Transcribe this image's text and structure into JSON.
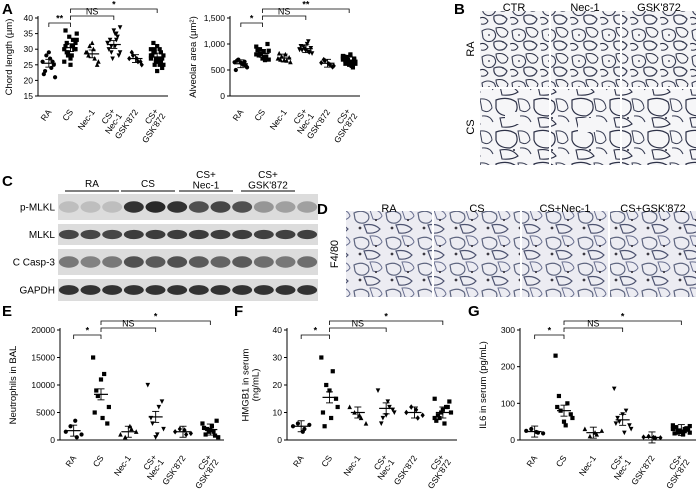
{
  "panels": {
    "A": {
      "letter": "A",
      "charts": [
        {
          "id": "chord",
          "ylabel": "Chord length (μm)",
          "ylim": [
            15,
            40
          ],
          "yticks": [
            "15",
            "20",
            "25",
            "30",
            "35",
            "40"
          ],
          "categories": [
            "RA",
            "CS",
            "Nec-1",
            "CS+\nNec-1",
            "GSK'872",
            "CS+\nGSK'872"
          ],
          "markers": [
            "circle",
            "square",
            "triangle",
            "tri-down",
            "diamond",
            "square"
          ],
          "values": [
            [
              26,
              24,
              28,
              21,
              27,
              23,
              25,
              29,
              22,
              26
            ],
            [
              30,
              33,
              28,
              35,
              31,
              29,
              32,
              27,
              36,
              30,
              34,
              26,
              31,
              29,
              33,
              28,
              32,
              30,
              25,
              31
            ],
            [
              29,
              27,
              31,
              26,
              30,
              28,
              25,
              32,
              29
            ],
            [
              32,
              35,
              29,
              37,
              31,
              33,
              28,
              36,
              30,
              34,
              27,
              32,
              33,
              31,
              29,
              35
            ],
            [
              27,
              26,
              28,
              25,
              27,
              29,
              26
            ],
            [
              28,
              26,
              30,
              25,
              27,
              29,
              24,
              31,
              28,
              26,
              27,
              30,
              25,
              29,
              28,
              26,
              32,
              27,
              23,
              28,
              29,
              26,
              27,
              30,
              25
            ]
          ],
          "means": [
            25.5,
            30.5,
            28.5,
            31.5,
            27,
            27.5
          ],
          "sig": [
            {
              "from": 0,
              "to": 1,
              "label": "**",
              "level": 0
            },
            {
              "from": 1,
              "to": 3,
              "label": "NS",
              "level": 1
            },
            {
              "from": 1,
              "to": 5,
              "label": "*",
              "level": 2
            }
          ]
        },
        {
          "id": "alveolar",
          "ylabel": "Alveolar area (μm²)",
          "ylim": [
            0,
            1500
          ],
          "yticks": [
            "0",
            "500",
            "1,000",
            "1,500"
          ],
          "categories": [
            "RA",
            "CS",
            "Nec-1",
            "CS+\nNec-1",
            "GSK'872",
            "CS+\nGSK'872"
          ],
          "markers": [
            "circle",
            "square",
            "triangle",
            "tri-down",
            "diamond",
            "square"
          ],
          "values": [
            [
              650,
              600,
              700,
              550,
              620,
              680,
              580,
              640,
              500,
              660
            ],
            [
              800,
              750,
              900,
              700,
              850,
              780,
              1000,
              720,
              880,
              760,
              820,
              950,
              690,
              810,
              870,
              740
            ],
            [
              720,
              680,
              760,
              650,
              800,
              700,
              740,
              690,
              820
            ],
            [
              900,
              850,
              950,
              820,
              1000,
              880,
              920,
              870,
              960,
              840,
              910,
              890,
              1050
            ],
            [
              640,
              600,
              680,
              580,
              620,
              700,
              560
            ],
            [
              700,
              650,
              750,
              620,
              800,
              680,
              720,
              600,
              760,
              660,
              690,
              740,
              580,
              710,
              650,
              780,
              620,
              700,
              640,
              730,
              550,
              680,
              770,
              600,
              720,
              660
            ]
          ],
          "means": [
            620,
            820,
            730,
            910,
            630,
            690
          ],
          "sig": [
            {
              "from": 0,
              "to": 1,
              "label": "*",
              "level": 0
            },
            {
              "from": 1,
              "to": 3,
              "label": "NS",
              "level": 1
            },
            {
              "from": 1,
              "to": 5,
              "label": "**",
              "level": 2
            }
          ]
        }
      ]
    },
    "B": {
      "letter": "B",
      "col_labels": [
        "CTR",
        "Nec-1",
        "GSK'872"
      ],
      "row_labels": [
        "RA",
        "CS"
      ]
    },
    "C": {
      "letter": "C",
      "group_labels": [
        "RA",
        "CS",
        "CS+\nNec-1",
        "CS+\nGSK'872"
      ],
      "rows": [
        {
          "label": "p-MLKL",
          "intensity": [
            0.15,
            0.15,
            0.15,
            0.85,
            0.9,
            0.85,
            0.7,
            0.75,
            0.7,
            0.35,
            0.3,
            0.3
          ]
        },
        {
          "label": "MLKL",
          "intensity": [
            0.75,
            0.75,
            0.75,
            0.8,
            0.8,
            0.8,
            0.8,
            0.8,
            0.8,
            0.78,
            0.78,
            0.78
          ]
        },
        {
          "label": "C Casp-3",
          "intensity": [
            0.5,
            0.45,
            0.5,
            0.7,
            0.65,
            0.7,
            0.65,
            0.6,
            0.65,
            0.55,
            0.5,
            0.55
          ]
        },
        {
          "label": "GAPDH",
          "intensity": [
            0.85,
            0.85,
            0.85,
            0.85,
            0.85,
            0.85,
            0.85,
            0.85,
            0.85,
            0.85,
            0.85,
            0.85
          ]
        }
      ]
    },
    "D": {
      "letter": "D",
      "row_label": "F4/80",
      "col_labels": [
        "RA",
        "CS",
        "CS+Nec-1",
        "CS+GSK'872"
      ]
    },
    "E": {
      "letter": "E",
      "ylabel": "Neutrophils in BAL",
      "ylim": [
        0,
        20000
      ],
      "yticks": [
        "0",
        "5000",
        "10000",
        "15000",
        "20000"
      ],
      "categories": [
        "RA",
        "CS",
        "Nec-1",
        "CS+\nNec-1",
        "GSK'872",
        "CS+\nGSK'872"
      ],
      "markers": [
        "circle",
        "square",
        "triangle",
        "tri-down",
        "diamond",
        "square"
      ],
      "values": [
        [
          1500,
          500,
          2500,
          1000,
          3500
        ],
        [
          15000,
          12000,
          8000,
          6000,
          4000,
          9000,
          3000,
          11000,
          5000
        ],
        [
          1000,
          2000,
          500,
          1500,
          2500
        ],
        [
          10000,
          6000,
          3000,
          2000,
          1000,
          4000,
          7000,
          500
        ],
        [
          1500,
          1000,
          2000,
          1200,
          1800
        ],
        [
          3000,
          1500,
          2000,
          500,
          2500,
          1000,
          3500,
          1800,
          2200,
          800,
          1500
        ]
      ],
      "means": [
        1700,
        8300,
        1500,
        4200,
        1500,
        1900
      ],
      "sig": [
        {
          "from": 0,
          "to": 1,
          "label": "*",
          "level": 0
        },
        {
          "from": 1,
          "to": 3,
          "label": "NS",
          "level": 1
        },
        {
          "from": 1,
          "to": 5,
          "label": "*",
          "level": 2
        }
      ]
    },
    "F": {
      "letter": "F",
      "ylabel": "HMGB1 in serum\n(ng/mL)",
      "ylim": [
        0,
        40
      ],
      "yticks": [
        "0",
        "10",
        "20",
        "30",
        "40"
      ],
      "categories": [
        "RA",
        "CS",
        "Nec-1",
        "CS+\nNec-1",
        "GSK'872",
        "CS+\nGSK'872"
      ],
      "markers": [
        "circle",
        "square",
        "triangle",
        "tri-down",
        "diamond",
        "square"
      ],
      "values": [
        [
          5,
          4,
          6,
          5.5,
          3
        ],
        [
          30,
          25,
          20,
          12,
          8,
          5,
          15,
          18,
          10
        ],
        [
          12,
          8,
          10,
          6,
          9
        ],
        [
          18,
          12,
          8,
          10,
          14,
          6,
          11,
          9
        ],
        [
          10,
          8,
          12,
          9,
          11
        ],
        [
          15,
          12,
          8,
          10,
          6,
          9,
          14,
          11,
          7,
          12,
          10,
          8
        ]
      ],
      "means": [
        5,
        15.5,
        10,
        11.5,
        10,
        10
      ],
      "sig": [
        {
          "from": 0,
          "to": 1,
          "label": "*",
          "level": 0
        },
        {
          "from": 1,
          "to": 3,
          "label": "NS",
          "level": 1
        },
        {
          "from": 1,
          "to": 5,
          "label": "*",
          "level": 2
        }
      ]
    },
    "G": {
      "letter": "G",
      "ylabel": "IL6 in serum (pg/mL)",
      "ylim": [
        0,
        300
      ],
      "yticks": [
        "0",
        "100",
        "200",
        "300"
      ],
      "categories": [
        "RA",
        "CS",
        "Nec-1",
        "CS+\nNec-1",
        "GSK'872",
        "CS+\nGSK'872"
      ],
      "markers": [
        "circle",
        "square",
        "triangle",
        "tri-down",
        "diamond",
        "square"
      ],
      "values": [
        [
          25,
          20,
          30,
          18,
          22
        ],
        [
          230,
          100,
          80,
          60,
          40,
          120,
          70,
          50,
          90
        ],
        [
          30,
          15,
          10,
          25,
          20
        ],
        [
          140,
          80,
          50,
          30,
          20,
          60,
          40,
          70,
          45
        ],
        [
          8,
          5,
          10,
          6,
          7
        ],
        [
          40,
          30,
          25,
          20,
          15,
          35,
          28,
          22,
          18,
          32,
          26,
          30,
          24,
          20,
          38,
          16
        ]
      ],
      "means": [
        23,
        80,
        20,
        55,
        7,
        27
      ],
      "sig": [
        {
          "from": 0,
          "to": 1,
          "label": "*",
          "level": 0
        },
        {
          "from": 1,
          "to": 3,
          "label": "NS",
          "level": 1
        },
        {
          "from": 1,
          "to": 5,
          "label": "*",
          "level": 2
        }
      ]
    }
  },
  "chart_data": [
    {
      "type": "scatter",
      "ylabel": "Chord length (μm)",
      "categories": [
        "RA",
        "CS",
        "Nec-1",
        "CS+Nec-1",
        "GSK'872",
        "CS+GSK'872"
      ],
      "ylim": [
        15,
        40
      ],
      "means": [
        25.5,
        30.5,
        28.5,
        31.5,
        27,
        27.5
      ],
      "annotations": [
        "**",
        "NS",
        "*"
      ]
    },
    {
      "type": "scatter",
      "ylabel": "Alveolar area (μm²)",
      "categories": [
        "RA",
        "CS",
        "Nec-1",
        "CS+Nec-1",
        "GSK'872",
        "CS+GSK'872"
      ],
      "ylim": [
        0,
        1500
      ],
      "means": [
        620,
        820,
        730,
        910,
        630,
        690
      ],
      "annotations": [
        "*",
        "NS",
        "**"
      ]
    },
    {
      "type": "scatter",
      "ylabel": "Neutrophils in BAL",
      "categories": [
        "RA",
        "CS",
        "Nec-1",
        "CS+Nec-1",
        "GSK'872",
        "CS+GSK'872"
      ],
      "ylim": [
        0,
        20000
      ],
      "means": [
        1700,
        8300,
        1500,
        4200,
        1500,
        1900
      ],
      "annotations": [
        "*",
        "NS",
        "*"
      ]
    },
    {
      "type": "scatter",
      "ylabel": "HMGB1 in serum (ng/mL)",
      "categories": [
        "RA",
        "CS",
        "Nec-1",
        "CS+Nec-1",
        "GSK'872",
        "CS+GSK'872"
      ],
      "ylim": [
        0,
        40
      ],
      "means": [
        5,
        15.5,
        10,
        11.5,
        10,
        10
      ],
      "annotations": [
        "*",
        "NS",
        "*"
      ]
    },
    {
      "type": "scatter",
      "ylabel": "IL6 in serum (pg/mL)",
      "categories": [
        "RA",
        "CS",
        "Nec-1",
        "CS+Nec-1",
        "GSK'872",
        "CS+GSK'872"
      ],
      "ylim": [
        0,
        300
      ],
      "means": [
        23,
        80,
        20,
        55,
        7,
        27
      ],
      "annotations": [
        "*",
        "NS",
        "*"
      ]
    }
  ]
}
